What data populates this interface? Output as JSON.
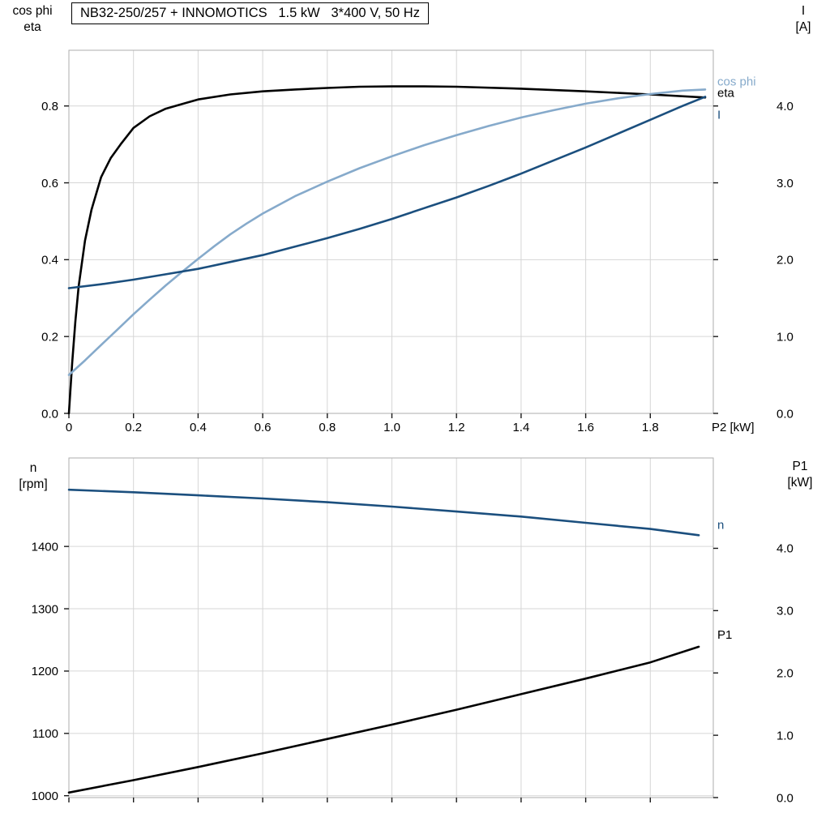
{
  "title_box": "NB32-250/257 + INNOMOTICS   1.5 kW   3*400 V, 50 Hz",
  "colors": {
    "black": "#000000",
    "dark_blue": "#1b4f7e",
    "light_blue": "#86aacb",
    "grid": "#d6d6d6",
    "frame": "#acacac",
    "tick": "#1a1a1a",
    "text": "#000000"
  },
  "chart_data": [
    {
      "type": "line",
      "panel": "top",
      "ylabel_left": "cos phi\neta",
      "ylabel_right": "I\n[A]",
      "xlabel": "P2 [kW]",
      "grid": true,
      "xlim": [
        0,
        1.995
      ],
      "xticks": [
        0,
        0.2,
        0.4,
        0.6,
        0.8,
        1.0,
        1.2,
        1.4,
        1.6,
        1.8
      ],
      "xtick_labels": [
        "0",
        "0.2",
        "0.4",
        "0.6",
        "0.8",
        "1.0",
        "1.2",
        "1.4",
        "1.6",
        "1.8"
      ],
      "ylim_left": [
        0,
        0.945
      ],
      "yticks_left": [
        0.0,
        0.2,
        0.4,
        0.6,
        0.8
      ],
      "ytick_labels_left": [
        "0.0",
        "0.2",
        "0.4",
        "0.6",
        "0.8"
      ],
      "ylim_right": [
        0,
        4.725
      ],
      "yticks_right": [
        0.0,
        1.0,
        2.0,
        3.0,
        4.0
      ],
      "ytick_labels_right": [
        "0.0",
        "1.0",
        "2.0",
        "3.0",
        "4.0"
      ],
      "series": [
        {
          "name": "eta",
          "label": "eta",
          "axis": "left",
          "color": "black",
          "label_dy": -6,
          "x": [
            0,
            0.01,
            0.02,
            0.03,
            0.05,
            0.07,
            0.1,
            0.13,
            0.16,
            0.2,
            0.25,
            0.3,
            0.4,
            0.5,
            0.6,
            0.7,
            0.8,
            0.9,
            1.0,
            1.1,
            1.2,
            1.4,
            1.6,
            1.8,
            1.97
          ],
          "y": [
            0,
            0.13,
            0.24,
            0.33,
            0.45,
            0.53,
            0.615,
            0.665,
            0.7,
            0.743,
            0.773,
            0.793,
            0.817,
            0.83,
            0.838,
            0.843,
            0.847,
            0.85,
            0.851,
            0.851,
            0.85,
            0.845,
            0.838,
            0.83,
            0.822
          ]
        },
        {
          "name": "cos-phi",
          "label": "cos phi",
          "axis": "left",
          "color": "light_blue",
          "label_dy": -10,
          "x": [
            0,
            0.05,
            0.1,
            0.15,
            0.2,
            0.25,
            0.3,
            0.35,
            0.4,
            0.45,
            0.5,
            0.55,
            0.6,
            0.7,
            0.8,
            0.9,
            1.0,
            1.1,
            1.2,
            1.3,
            1.4,
            1.5,
            1.6,
            1.7,
            1.8,
            1.9,
            1.97
          ],
          "y": [
            0.1,
            0.138,
            0.178,
            0.218,
            0.258,
            0.296,
            0.333,
            0.368,
            0.402,
            0.435,
            0.466,
            0.494,
            0.52,
            0.565,
            0.603,
            0.638,
            0.669,
            0.698,
            0.724,
            0.748,
            0.77,
            0.789,
            0.806,
            0.82,
            0.831,
            0.84,
            0.843
          ]
        },
        {
          "name": "current",
          "label": "I",
          "axis": "right",
          "color": "dark_blue",
          "label_dy": 22,
          "x": [
            0,
            0.1,
            0.2,
            0.3,
            0.4,
            0.5,
            0.6,
            0.7,
            0.8,
            0.9,
            1.0,
            1.1,
            1.2,
            1.3,
            1.4,
            1.5,
            1.6,
            1.7,
            1.8,
            1.9,
            1.97
          ],
          "y": [
            1.63,
            1.68,
            1.74,
            1.81,
            1.88,
            1.97,
            2.06,
            2.17,
            2.28,
            2.4,
            2.53,
            2.67,
            2.81,
            2.96,
            3.12,
            3.29,
            3.46,
            3.64,
            3.82,
            4.0,
            4.12
          ]
        }
      ]
    },
    {
      "type": "line",
      "panel": "bottom",
      "ylabel_left": "n\n[rpm]",
      "ylabel_right": "P1\n[kW]",
      "xlabel": "",
      "grid": true,
      "xlim": [
        0,
        1.995
      ],
      "xticks": [
        0,
        0.2,
        0.4,
        0.6,
        0.8,
        1.0,
        1.2,
        1.4,
        1.6,
        1.8
      ],
      "xtick_labels": [],
      "ylim_left": [
        997,
        1542
      ],
      "yticks_left": [
        1000,
        1100,
        1200,
        1300,
        1400
      ],
      "ytick_labels_left": [
        "1000",
        "1100",
        "1200",
        "1300",
        "1400"
      ],
      "ylim_right": [
        0,
        5.45
      ],
      "yticks_right": [
        0.0,
        1.0,
        2.0,
        3.0,
        4.0
      ],
      "ytick_labels_right": [
        "0.0",
        "1.0",
        "2.0",
        "3.0",
        "4.0"
      ],
      "series": [
        {
          "name": "speed",
          "label": "n",
          "axis": "left",
          "color": "dark_blue",
          "label_dy": -13,
          "x": [
            0,
            0.2,
            0.4,
            0.6,
            0.8,
            1.0,
            1.2,
            1.4,
            1.6,
            1.8,
            1.95
          ],
          "y": [
            1491,
            1487,
            1482,
            1477,
            1471,
            1464,
            1456,
            1448,
            1438,
            1428,
            1418
          ]
        },
        {
          "name": "input-power",
          "label": "P1",
          "axis": "right",
          "color": "black",
          "label_dy": -15,
          "x": [
            0,
            0.2,
            0.4,
            0.6,
            0.8,
            1.0,
            1.2,
            1.4,
            1.6,
            1.8,
            1.95
          ],
          "y": [
            0.08,
            0.28,
            0.49,
            0.71,
            0.94,
            1.17,
            1.41,
            1.66,
            1.91,
            2.17,
            2.42
          ]
        }
      ]
    }
  ]
}
